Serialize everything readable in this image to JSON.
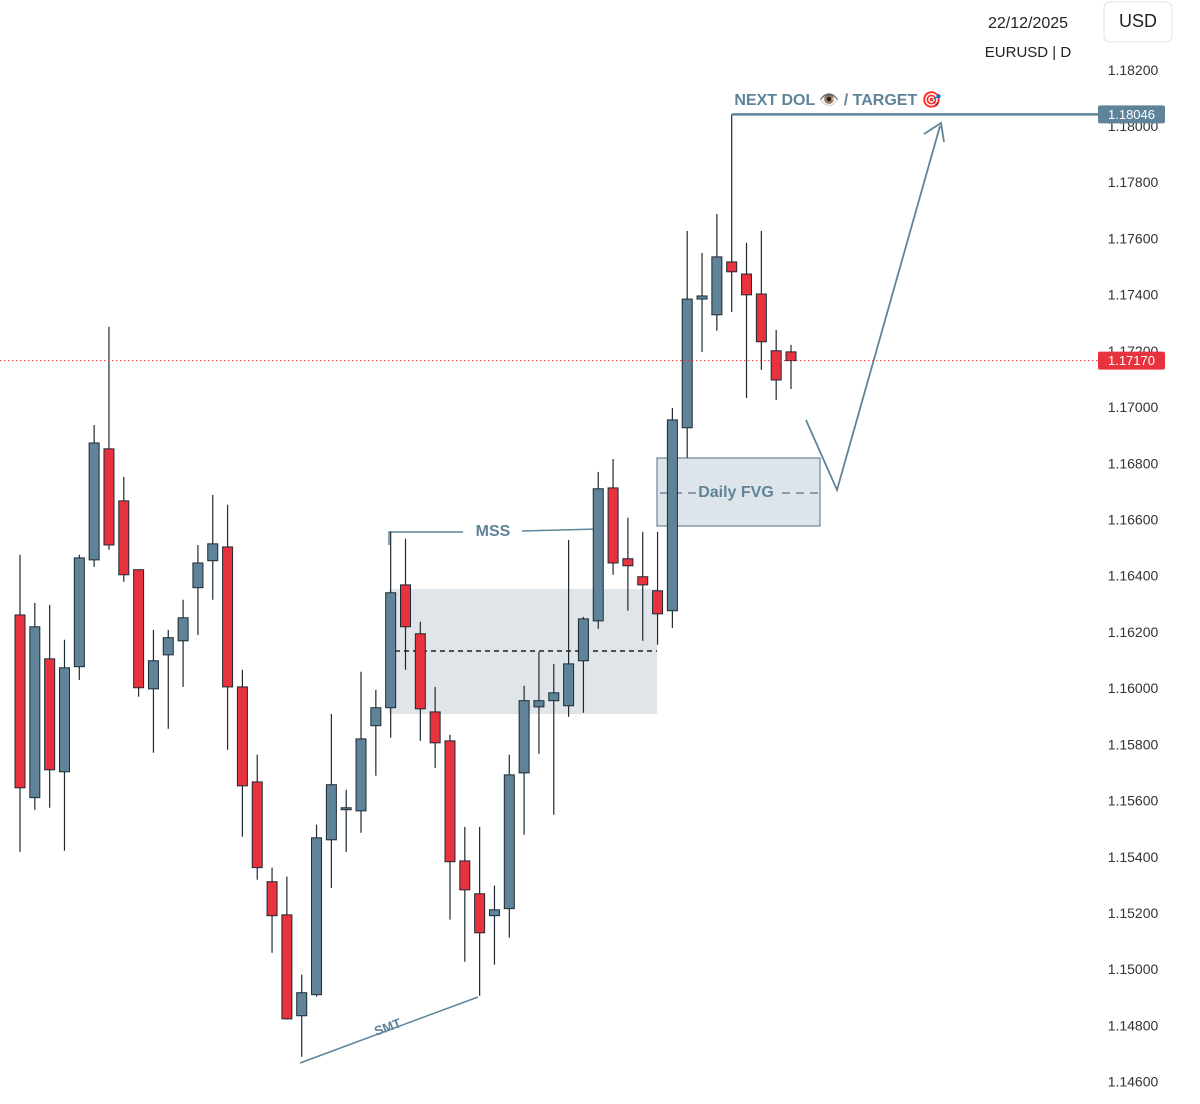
{
  "chart_data": {
    "type": "candlestick",
    "date": "22/12/2025",
    "symbol": "EURUSD | D",
    "currency": "USD",
    "up_color": "#5f8499",
    "down_color": "#e8333f",
    "ylim": [
      1.14525,
      1.18453
    ],
    "yticks": [
      {
        "value": 1.182,
        "label": "1.18200"
      },
      {
        "value": 1.18,
        "label": "1.18000"
      },
      {
        "value": 1.178,
        "label": "1.17800"
      },
      {
        "value": 1.176,
        "label": "1.17600"
      },
      {
        "value": 1.174,
        "label": "1.17400"
      },
      {
        "value": 1.172,
        "label": "1.17200"
      },
      {
        "value": 1.17,
        "label": "1.17000"
      },
      {
        "value": 1.168,
        "label": "1.16800"
      },
      {
        "value": 1.166,
        "label": "1.16600"
      },
      {
        "value": 1.164,
        "label": "1.16400"
      },
      {
        "value": 1.162,
        "label": "1.16200"
      },
      {
        "value": 1.16,
        "label": "1.16000"
      },
      {
        "value": 1.158,
        "label": "1.15800"
      },
      {
        "value": 1.156,
        "label": "1.15600"
      },
      {
        "value": 1.154,
        "label": "1.15400"
      },
      {
        "value": 1.152,
        "label": "1.15200"
      },
      {
        "value": 1.15,
        "label": "1.15000"
      },
      {
        "value": 1.148,
        "label": "1.14800"
      },
      {
        "value": 1.146,
        "label": "1.14600"
      }
    ],
    "open": [
      1.16265,
      1.15615,
      1.16109,
      1.15707,
      1.16081,
      1.16461,
      1.16856,
      1.16671,
      1.16426,
      1.16002,
      1.16123,
      1.16173,
      1.16362,
      1.16458,
      1.16507,
      1.16009,
      1.15671,
      1.15316,
      1.15198,
      1.14839,
      1.14914,
      1.15465,
      1.15572,
      1.15568,
      1.15871,
      1.15935,
      1.16372,
      1.16198,
      1.1592,
      1.15817,
      1.1539,
      1.15273,
      1.15195,
      1.1522,
      1.15703,
      1.15938,
      1.1596,
      1.15942,
      1.16102,
      1.16244,
      1.16717,
      1.16465,
      1.16401,
      1.16351,
      1.1628,
      1.16931,
      1.17389,
      1.17333,
      1.17521,
      1.17478,
      1.17407,
      1.17205,
      1.17201
    ],
    "high": [
      1.16479,
      1.16308,
      1.16301,
      1.16177,
      1.16479,
      1.16941,
      1.1729,
      1.16756,
      1.16426,
      1.16212,
      1.16212,
      1.16319,
      1.16514,
      1.16692,
      1.16657,
      1.1607,
      1.15768,
      1.15366,
      1.15334,
      1.14985,
      1.15519,
      1.15913,
      1.15643,
      1.16063,
      1.15999,
      1.16561,
      1.16536,
      1.16241,
      1.16009,
      1.15839,
      1.15511,
      1.15511,
      1.15302,
      1.15768,
      1.16013,
      1.16134,
      1.16091,
      1.16532,
      1.16258,
      1.16774,
      1.1682,
      1.16611,
      1.16561,
      1.16561,
      1.17002,
      1.17631,
      1.17553,
      1.17692,
      1.18046,
      1.17589,
      1.17631,
      1.17279,
      1.17226
    ],
    "low": [
      1.15422,
      1.15572,
      1.15579,
      1.15426,
      1.16034,
      1.16436,
      1.16497,
      1.16383,
      1.15974,
      1.15775,
      1.1586,
      1.16009,
      1.16194,
      1.16319,
      1.15785,
      1.15476,
      1.15323,
      1.15063,
      1.14825,
      1.14693,
      1.14907,
      1.15294,
      1.15422,
      1.1549,
      1.15693,
      1.15828,
      1.1607,
      1.15817,
      1.15721,
      1.15181,
      1.15031,
      1.1491,
      1.15021,
      1.15117,
      1.15483,
      1.15771,
      1.15554,
      1.15903,
      1.15917,
      1.16216,
      1.16408,
      1.1628,
      1.16173,
      1.16159,
      1.16219,
      1.16824,
      1.17201,
      1.17276,
      1.17343,
      1.17037,
      1.17137,
      1.1703,
      1.17069
    ],
    "close": [
      1.1565,
      1.16223,
      1.15714,
      1.16077,
      1.16468,
      1.16877,
      1.16514,
      1.16408,
      1.16006,
      1.16102,
      1.16184,
      1.16255,
      1.1645,
      1.16518,
      1.16009,
      1.15657,
      1.15366,
      1.15195,
      1.14828,
      1.14921,
      1.15472,
      1.15661,
      1.15579,
      1.15824,
      1.15935,
      1.16344,
      1.16223,
      1.15931,
      1.1581,
      1.15387,
      1.15287,
      1.15134,
      1.15216,
      1.15696,
      1.1596,
      1.1596,
      1.15988,
      1.16091,
      1.16251,
      1.16714,
      1.1645,
      1.1644,
      1.16372,
      1.16269,
      1.16959,
      1.17389,
      1.174,
      1.17539,
      1.17486,
      1.17404,
      1.17237,
      1.17101,
      1.1717
    ],
    "price_lines": [
      {
        "value": 1.18046,
        "label": "1.18046",
        "color": "#5f8499",
        "style": "solid"
      },
      {
        "value": 1.1717,
        "label": "1.17170",
        "color": "#e8333f",
        "style": "dotted"
      }
    ],
    "annotations": [
      "NEXT DOL 👁️ / TARGET 🎯",
      "MSS",
      "Daily FVG",
      "SMT"
    ]
  }
}
